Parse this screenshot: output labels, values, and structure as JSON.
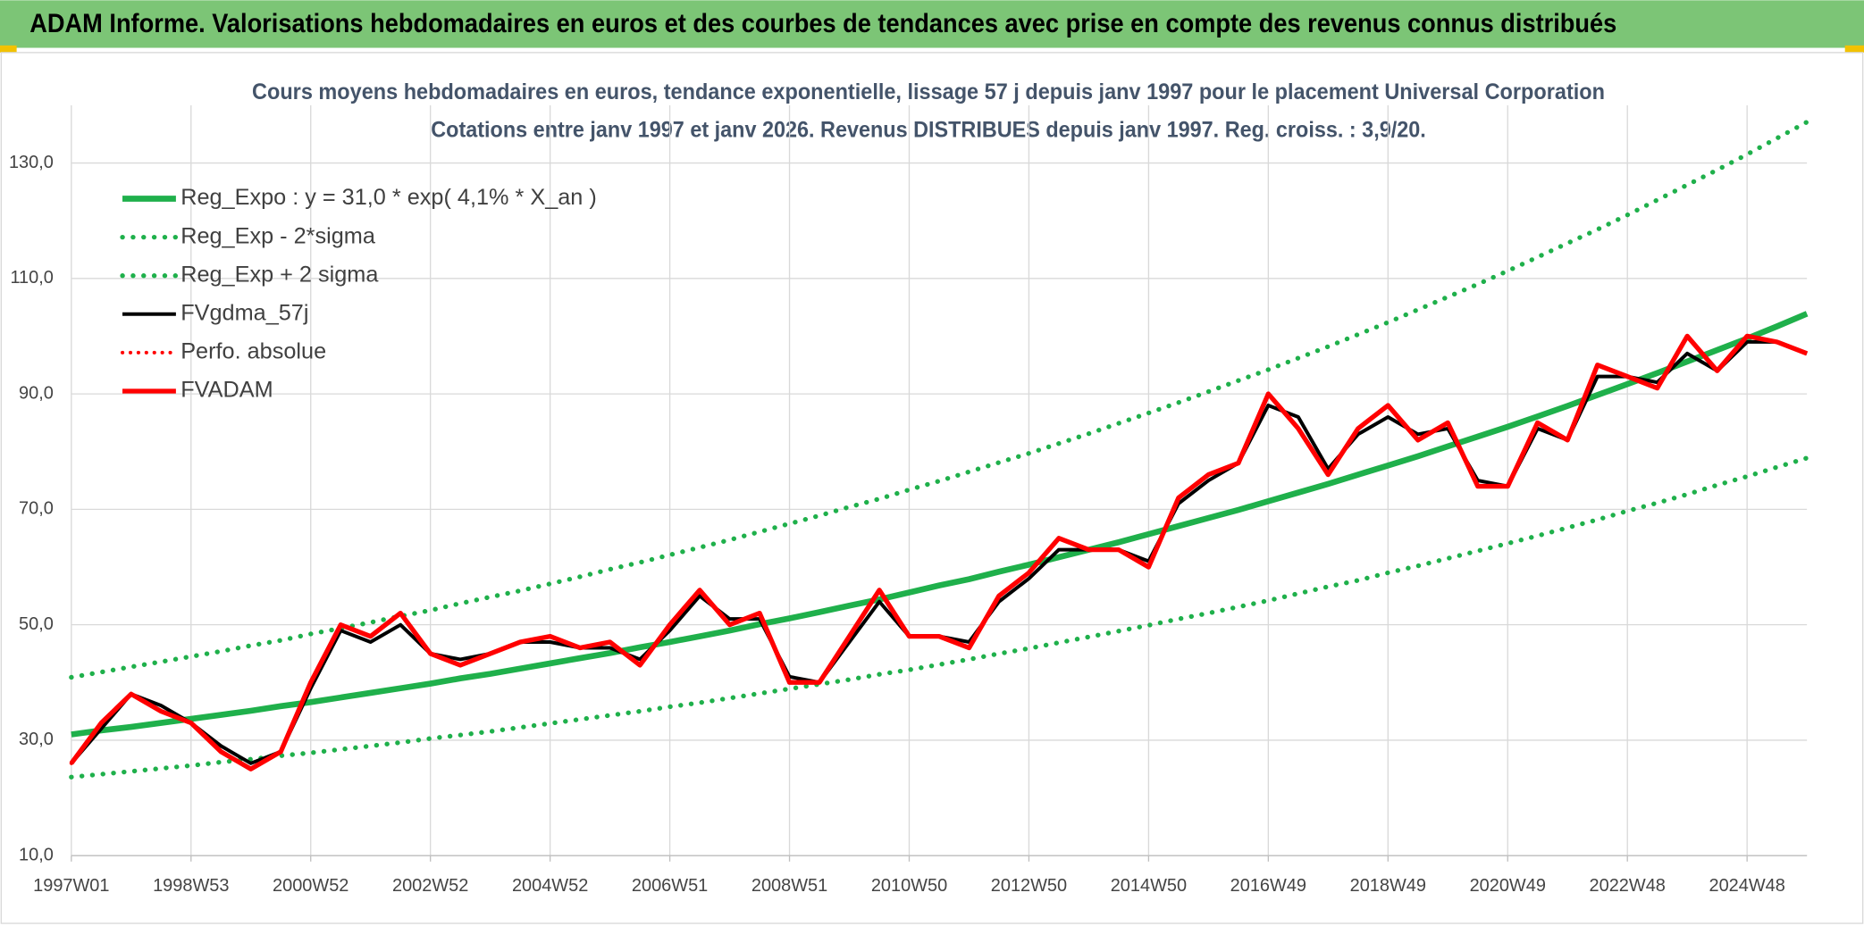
{
  "header": {
    "title": "ADAM Informe. Valorisations hebdomadaires en euros et des courbes de tendances avec prise en compte des revenus connus distribués"
  },
  "chart_data": {
    "type": "line",
    "title": "Cours moyens hebdomadaires en euros, tendance exponentielle, lissage 57 j depuis janv 1997 pour le placement Universal Corporation",
    "subtitle": "Cotations entre janv 1997 et janv 2026. Revenus DISTRIBUES depuis janv 1997. Reg. croiss. : 3,9/20.",
    "categories": [
      "1997W01",
      null,
      null,
      null,
      "1998W53",
      null,
      null,
      null,
      "2000W52",
      null,
      null,
      null,
      "2002W52",
      null,
      null,
      null,
      "2004W52",
      null,
      null,
      null,
      "2006W51",
      null,
      null,
      null,
      "2008W51",
      null,
      null,
      null,
      "2010W50",
      null,
      null,
      null,
      "2012W50",
      null,
      null,
      null,
      "2014W50",
      null,
      null,
      null,
      "2016W49",
      null,
      null,
      null,
      "2018W49",
      null,
      null,
      null,
      "2020W49",
      null,
      null,
      null,
      "2022W48",
      null,
      null,
      null,
      "2024W48",
      null,
      null
    ],
    "ylim": [
      10,
      140
    ],
    "yticks": [
      {
        "value": 10,
        "label": "10,0"
      },
      {
        "value": 30,
        "label": "30,0"
      },
      {
        "value": 50,
        "label": "50,0"
      },
      {
        "value": 70,
        "label": "70,0"
      },
      {
        "value": 90,
        "label": "90,0"
      },
      {
        "value": 110,
        "label": "110,0"
      },
      {
        "value": 130,
        "label": "130,0"
      }
    ],
    "grid": true,
    "legend": "upper left",
    "series": [
      {
        "name": "Reg_Expo : y = 31,0 * exp( 4,1% *  X_an )",
        "color": "#1fb04b",
        "dash": "solid",
        "values": [
          31.0,
          31.7,
          32.3,
          33.0,
          33.7,
          34.4,
          35.1,
          35.9,
          36.6,
          37.4,
          38.2,
          39.0,
          39.8,
          40.7,
          41.5,
          42.4,
          43.3,
          44.2,
          45.1,
          46.1,
          47.0,
          48.0,
          49.0,
          50.1,
          51.1,
          52.2,
          53.3,
          54.4,
          55.6,
          56.8,
          57.9,
          59.2,
          60.4,
          61.7,
          63.0,
          64.3,
          65.7,
          67.1,
          68.5,
          69.9,
          71.4,
          72.9,
          74.4,
          76.0,
          77.6,
          79.2,
          80.9,
          82.6,
          84.3,
          86.1,
          87.9,
          89.8,
          91.7,
          93.6,
          95.6,
          97.6,
          99.6,
          101.7,
          103.9
        ]
      },
      {
        "name": "Reg_Exp - 2*sigma",
        "color": "#1fb04b",
        "dash": "dotted",
        "values": [
          23.6,
          24.1,
          24.6,
          25.1,
          25.6,
          26.2,
          26.7,
          27.3,
          27.8,
          28.4,
          29.0,
          29.6,
          30.3,
          30.9,
          31.5,
          32.2,
          32.9,
          33.6,
          34.3,
          35.0,
          35.8,
          36.5,
          37.3,
          38.1,
          38.9,
          39.7,
          40.5,
          41.4,
          42.2,
          43.1,
          44.0,
          45.0,
          45.9,
          46.9,
          47.9,
          48.9,
          49.9,
          51.0,
          52.0,
          53.1,
          54.2,
          55.4,
          56.6,
          57.7,
          59.0,
          60.2,
          61.5,
          62.8,
          64.1,
          65.4,
          66.8,
          68.2,
          69.7,
          71.1,
          72.6,
          74.2,
          75.7,
          77.3,
          78.9
        ]
      },
      {
        "name": "Reg_Exp + 2 sigma",
        "color": "#1fb04b",
        "dash": "dotted",
        "values": [
          40.9,
          41.8,
          42.7,
          43.6,
          44.5,
          45.4,
          46.4,
          47.3,
          48.4,
          49.4,
          50.4,
          51.5,
          52.5,
          53.7,
          54.8,
          55.9,
          57.1,
          58.3,
          59.6,
          60.8,
          62.1,
          63.4,
          64.7,
          66.1,
          67.5,
          68.9,
          70.4,
          71.8,
          73.4,
          74.9,
          76.5,
          78.1,
          79.7,
          81.4,
          83.1,
          84.9,
          86.7,
          88.5,
          90.4,
          92.3,
          94.2,
          96.2,
          98.2,
          100.3,
          102.4,
          104.6,
          106.8,
          109.0,
          111.3,
          113.7,
          116.1,
          118.5,
          121.0,
          123.6,
          126.2,
          128.8,
          131.5,
          134.3,
          137.1
        ]
      },
      {
        "name": "FVgdma_57j",
        "color": "#000000",
        "dash": "solid",
        "values": [
          26,
          32,
          38,
          36,
          33,
          29,
          26,
          28,
          39,
          49,
          47,
          50,
          45,
          44,
          45,
          47,
          47,
          46,
          46,
          44,
          49,
          55,
          51,
          51,
          41,
          40,
          47,
          54,
          48,
          48,
          47,
          54,
          58,
          63,
          63,
          63,
          61,
          71,
          75,
          78,
          88,
          86,
          77,
          83,
          86,
          83,
          84,
          75,
          74,
          84,
          82,
          93,
          93,
          92,
          97,
          94,
          99,
          99,
          97
        ]
      },
      {
        "name": "Perfo. absolue",
        "color": "#ff0000",
        "dash": "dotted",
        "values": [
          26,
          33,
          38,
          35,
          33,
          28,
          25,
          28,
          40,
          50,
          48,
          52,
          45,
          43,
          45,
          47,
          48,
          46,
          47,
          43,
          50,
          56,
          50,
          52,
          40,
          40,
          48,
          56,
          48,
          48,
          46,
          55,
          59,
          65,
          63,
          63,
          60,
          72,
          76,
          78,
          90,
          84,
          76,
          84,
          88,
          82,
          85,
          74,
          74,
          85,
          82,
          95,
          93,
          91,
          100,
          94,
          100,
          99,
          97
        ]
      },
      {
        "name": "FVADAM",
        "color": "#ff0000",
        "dash": "solid",
        "values": [
          26,
          33,
          38,
          35,
          33,
          28,
          25,
          28,
          40,
          50,
          48,
          52,
          45,
          43,
          45,
          47,
          48,
          46,
          47,
          43,
          50,
          56,
          50,
          52,
          40,
          40,
          48,
          56,
          48,
          48,
          46,
          55,
          59,
          65,
          63,
          63,
          60,
          72,
          76,
          78,
          90,
          84,
          76,
          84,
          88,
          82,
          85,
          74,
          74,
          85,
          82,
          95,
          93,
          91,
          100,
          94,
          100,
          99,
          97
        ]
      }
    ]
  }
}
